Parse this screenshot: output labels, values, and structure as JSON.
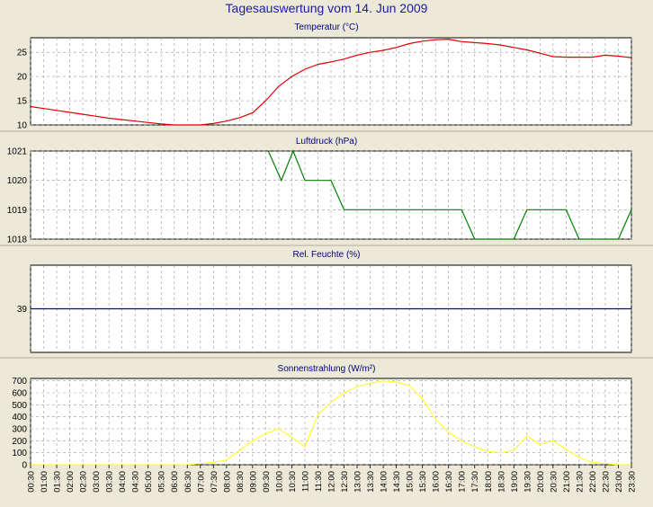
{
  "window": {
    "title": "Tagesauswertung vom 14. Jun 2009"
  },
  "colors": {
    "background": "#ece9d8",
    "plot_bg": "#ffffff",
    "grid": "#9a9a9a",
    "temperature": "#e00000",
    "pressure": "#008000",
    "humidity": "#0000cc",
    "radiation": "#ffff33"
  },
  "x_labels": [
    "00:30",
    "01:00",
    "01:30",
    "02:00",
    "02:30",
    "03:00",
    "03:30",
    "04:00",
    "04:30",
    "05:00",
    "05:30",
    "06:00",
    "06:30",
    "07:00",
    "07:30",
    "08:00",
    "08:30",
    "09:00",
    "09:30",
    "10:00",
    "10:30",
    "11:00",
    "11:30",
    "12:00",
    "12:30",
    "13:00",
    "13:30",
    "14:00",
    "14:30",
    "15:00",
    "15:30",
    "16:00",
    "16:30",
    "17:00",
    "17:30",
    "18:00",
    "18:30",
    "19:00",
    "19:30",
    "20:00",
    "20:30",
    "21:00",
    "21:30",
    "22:00",
    "22:30",
    "23:00",
    "23:30"
  ],
  "chart_data": [
    {
      "type": "line",
      "title": "Temperatur (°C)",
      "ylim": [
        10,
        28
      ],
      "yticks": [
        "10",
        "15",
        "20",
        "25"
      ],
      "series": [
        {
          "color": "#e00000",
          "x": [
            0,
            1,
            2,
            3,
            4,
            5,
            6,
            7,
            8,
            9,
            10,
            11,
            12,
            13,
            14,
            15,
            16,
            17,
            18,
            19,
            20,
            21,
            22,
            23,
            24,
            25,
            26,
            27,
            28,
            29,
            30,
            31,
            32,
            33,
            34,
            35,
            36,
            37,
            38,
            39,
            40,
            41,
            42,
            43,
            44,
            45,
            46
          ],
          "values": [
            13.8,
            13.4,
            13.0,
            12.6,
            12.2,
            11.8,
            11.4,
            11.1,
            10.8,
            10.5,
            10.2,
            9.9,
            9.8,
            9.9,
            10.3,
            10.8,
            11.5,
            12.5,
            15.0,
            18.0,
            20.0,
            21.5,
            22.5,
            23.0,
            23.6,
            24.4,
            25.0,
            25.4,
            26.0,
            26.8,
            27.3,
            27.6,
            27.7,
            27.2,
            27.0,
            26.8,
            26.5,
            26.0,
            25.5,
            24.8,
            24.1,
            24.0,
            24.0,
            24.0,
            24.4,
            24.2,
            23.9
          ]
        }
      ],
      "grid": true
    },
    {
      "type": "line",
      "title": "Luftdruck (hPa)",
      "ylim": [
        1018,
        1021
      ],
      "yticks": [
        "1018",
        "1019",
        "1020",
        "1021"
      ],
      "series": [
        {
          "color": "#008000",
          "x": [
            18.2,
            19.2,
            20.1,
            21,
            22.2,
            23,
            24,
            25,
            26,
            27,
            28,
            29,
            30,
            31,
            32,
            33,
            34,
            35,
            36,
            37,
            38,
            39,
            40,
            41,
            42,
            43,
            44,
            45,
            46
          ],
          "values": [
            1021,
            1020,
            1021,
            1020,
            1020,
            1020,
            1019,
            1019,
            1019,
            1019,
            1019,
            1019,
            1019,
            1019,
            1019,
            1019,
            1018,
            1018,
            1018,
            1018,
            1019,
            1019,
            1019,
            1019,
            1018,
            1018,
            1018,
            1018,
            1019
          ]
        }
      ],
      "grid": true
    },
    {
      "type": "line",
      "title": "Rel. Feuchte (%)",
      "ylim": [
        38,
        40
      ],
      "yticks": [
        "39"
      ],
      "series": [
        {
          "color": "#0000cc",
          "x": [
            0,
            46
          ],
          "values": [
            39,
            39
          ]
        }
      ],
      "grid": true
    },
    {
      "type": "line",
      "title": "Sonnenstrahlung (W/m²)",
      "ylim": [
        0,
        720
      ],
      "yticks": [
        "0",
        "100",
        "200",
        "300",
        "400",
        "500",
        "600",
        "700"
      ],
      "series": [
        {
          "color": "#ffff33",
          "x": [
            0,
            1,
            2,
            3,
            4,
            5,
            6,
            7,
            8,
            9,
            10,
            11,
            12,
            13,
            14,
            15,
            16,
            17,
            18,
            19,
            20,
            21,
            22,
            23,
            24,
            25,
            26,
            27,
            28,
            29,
            30,
            31,
            32,
            33,
            34,
            35,
            36,
            37,
            38,
            39,
            40,
            41,
            42,
            43,
            44,
            45,
            46
          ],
          "values": [
            0,
            0,
            0,
            0,
            0,
            0,
            0,
            0,
            0,
            0,
            0,
            0,
            0,
            10,
            20,
            40,
            120,
            200,
            260,
            300,
            230,
            150,
            420,
            520,
            600,
            650,
            680,
            700,
            690,
            660,
            550,
            380,
            270,
            200,
            150,
            110,
            100,
            120,
            240,
            170,
            200,
            130,
            60,
            20,
            10,
            0,
            0
          ]
        }
      ],
      "grid": true
    }
  ]
}
